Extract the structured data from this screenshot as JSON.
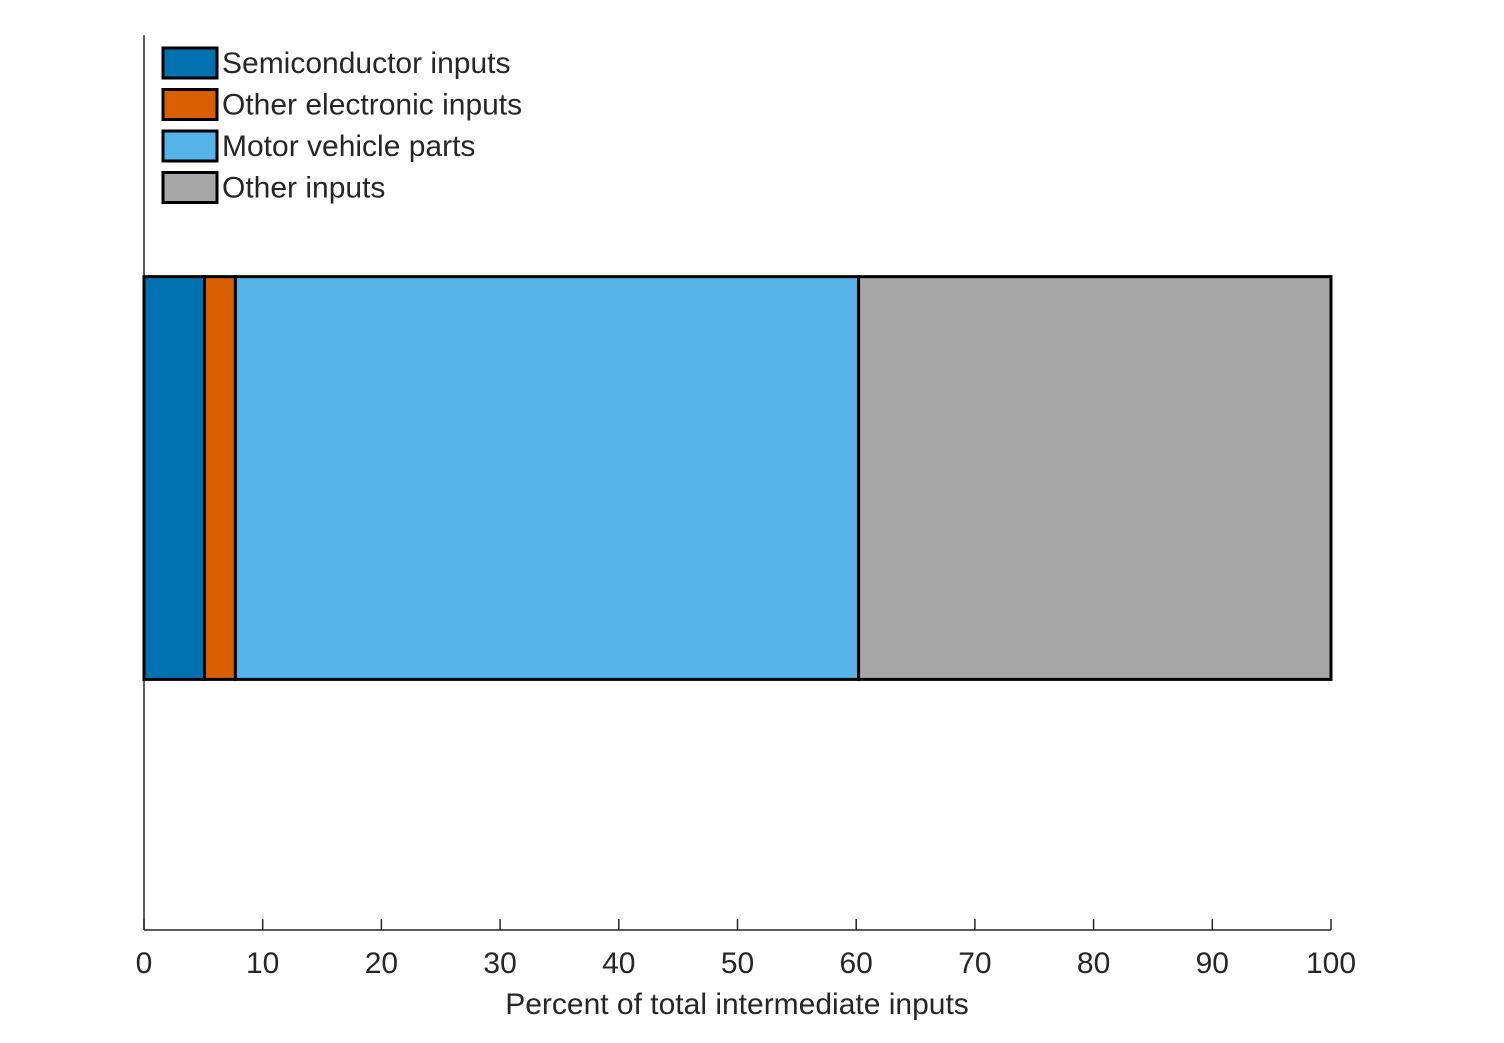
{
  "chart_data": {
    "type": "stacked_bar_horizontal",
    "xlabel": "Percent of total intermediate inputs",
    "categories": [
      null
    ],
    "series": [
      {
        "name": "Semiconductor inputs",
        "color": "#0072b2",
        "values": [
          5.1
        ]
      },
      {
        "name": "Other electronic inputs",
        "color": "#d95f02",
        "values": [
          2.6
        ]
      },
      {
        "name": "Motor vehicle parts",
        "color": "#56b4e9",
        "values": [
          52.5
        ]
      },
      {
        "name": "Other inputs",
        "color": "#a6a6a6",
        "values": [
          39.8
        ]
      }
    ],
    "xlim": [
      0,
      100
    ],
    "xticks": [
      0,
      10,
      20,
      30,
      40,
      50,
      60,
      70,
      80,
      90,
      100
    ],
    "legend": "upper left"
  }
}
